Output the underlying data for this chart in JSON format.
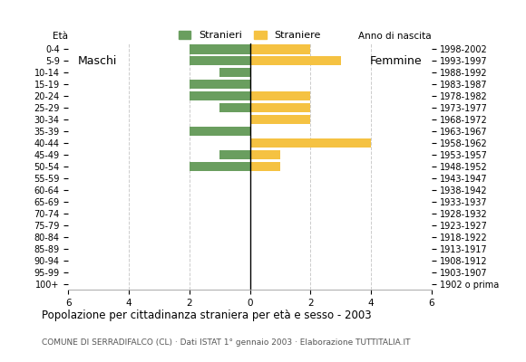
{
  "age_groups": [
    "100+",
    "95-99",
    "90-94",
    "85-89",
    "80-84",
    "75-79",
    "70-74",
    "65-69",
    "60-64",
    "55-59",
    "50-54",
    "45-49",
    "40-44",
    "35-39",
    "30-34",
    "25-29",
    "20-24",
    "15-19",
    "10-14",
    "5-9",
    "0-4"
  ],
  "birth_years": [
    "1902 o prima",
    "1903-1907",
    "1908-1912",
    "1913-1917",
    "1918-1922",
    "1923-1927",
    "1928-1932",
    "1933-1937",
    "1938-1942",
    "1943-1947",
    "1948-1952",
    "1953-1957",
    "1958-1962",
    "1963-1967",
    "1968-1972",
    "1973-1977",
    "1978-1982",
    "1983-1987",
    "1988-1992",
    "1993-1997",
    "1998-2002"
  ],
  "males": [
    0,
    0,
    0,
    0,
    0,
    0,
    0,
    0,
    0,
    0,
    2,
    1,
    0,
    2,
    0,
    1,
    2,
    2,
    1,
    2,
    2
  ],
  "females": [
    0,
    0,
    0,
    0,
    0,
    0,
    0,
    0,
    0,
    0,
    1,
    1,
    4,
    0,
    2,
    2,
    2,
    0,
    0,
    3,
    2
  ],
  "male_color": "#6a9e5f",
  "female_color": "#f5c242",
  "title": "Popolazione per cittadinanza straniera per età e sesso - 2003",
  "subtitle": "COMUNE DI SERRADIFALCO (CL) · Dati ISTAT 1° gennaio 2003 · Elaborazione TUTTITALIA.IT",
  "legend_male": "Stranieri",
  "legend_female": "Straniere",
  "label_eta": "Età",
  "label_anno": "Anno di nascita",
  "label_maschi": "Maschi",
  "label_femmine": "Femmine",
  "xlim": 6,
  "background_color": "#ffffff",
  "grid_color": "#cccccc"
}
